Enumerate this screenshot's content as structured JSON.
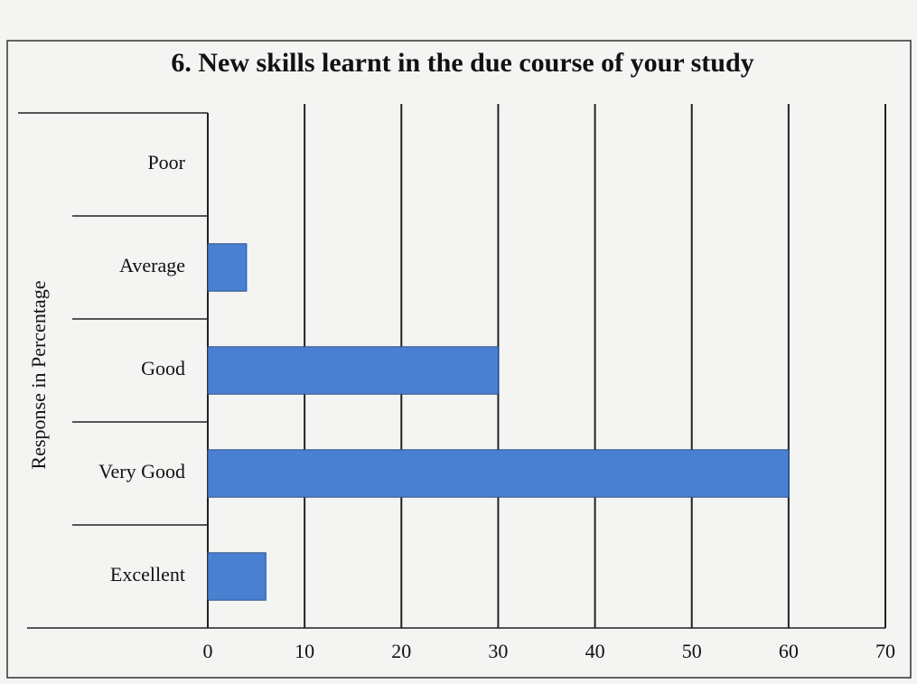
{
  "chart_data": {
    "type": "bar",
    "orientation": "horizontal",
    "title": "6. New skills learnt in the due course of your study",
    "y_label": "Response in Percentage",
    "categories": [
      "Poor",
      "Average",
      "Good",
      "Very Good",
      "Excellent"
    ],
    "values": [
      0,
      4,
      30,
      60,
      6
    ],
    "color": "#4a80d2",
    "xlim": [
      0,
      70
    ],
    "xticks": [
      0,
      10,
      20,
      30,
      40,
      50,
      60,
      70
    ],
    "grid": true
  }
}
